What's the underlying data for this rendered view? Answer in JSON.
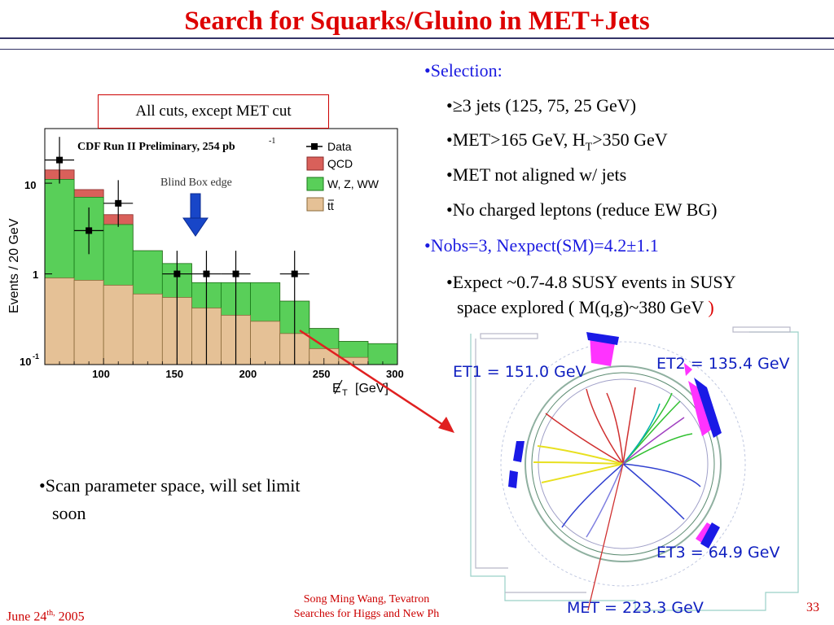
{
  "title": "Search for Squarks/Gluino in MET+Jets",
  "plot": {
    "cut_label": "All cuts, except MET cut",
    "header": "CDF Run II Preliminary, 254 pb",
    "header_sup": "-1",
    "ylabel": "Events / 20 GeV",
    "xlabel": "E",
    "xlabel_sub": "T",
    "xlabel_unit": "[GeV]",
    "blind_box_label": "Blind Box edge",
    "y_ticks": [
      "10",
      "1",
      "10"
    ],
    "y_tick_sup": "-1",
    "x_ticks": [
      "100",
      "150",
      "200",
      "250",
      "300"
    ],
    "legend": [
      "Data",
      "QCD",
      "W, Z, WW",
      "tt"
    ],
    "colors": {
      "qcd": "#d9605a",
      "wzww": "#59cf59",
      "tt": "#e5c196",
      "data": "#000000",
      "arrow": "#1846c8"
    }
  },
  "chart_data": {
    "type": "bar",
    "title": "CDF Run II Preliminary, 254 pb-1",
    "xlabel": "MET [GeV]",
    "ylabel": "Events / 20 GeV",
    "y_scale": "log",
    "xlim": [
      60,
      300
    ],
    "ylim": [
      0.1,
      40
    ],
    "bin_edges": [
      60,
      80,
      100,
      120,
      140,
      160,
      180,
      200,
      220,
      240,
      260,
      280,
      300
    ],
    "series": [
      {
        "name": "tt",
        "values": [
          0.9,
          0.85,
          0.75,
          0.6,
          0.55,
          0.42,
          0.35,
          0.3,
          0.22,
          0.15,
          0.12,
          0.1
        ]
      },
      {
        "name": "W, Z, WW",
        "values": [
          11,
          7,
          3.5,
          1.8,
          1.3,
          0.8,
          0.8,
          0.8,
          0.5,
          0.25,
          0.18,
          0.17
        ]
      },
      {
        "name": "QCD",
        "values": [
          14,
          8.5,
          4.5,
          1.8,
          1.3,
          0.8,
          0.8,
          0.8,
          0.5,
          0.25,
          0.18,
          0.17
        ]
      }
    ],
    "data_points": {
      "name": "Data",
      "x": [
        70,
        90,
        110,
        150,
        170,
        190,
        230
      ],
      "y": [
        18,
        3,
        6,
        1,
        1,
        1,
        1
      ]
    },
    "annotation": {
      "label": "Blind Box edge",
      "x": 165
    }
  },
  "bullets": {
    "selection": "•Selection:",
    "jets": "•≥3 jets (125, 75, 25 GeV)",
    "met_pre": "•MET>165 GeV, H",
    "met_sub": "T",
    "met_post": ">350 GeV",
    "notaligned": "•MET not aligned w/ jets",
    "noleptons": "•No charged leptons (reduce EW BG)",
    "nobs": "•Nobs=3,  Nexpect(SM)=4.2±1.1",
    "expect1": "•Expect ~0.7-4.8 SUSY events in SUSY",
    "expect2_pre": "space explored ( M(q,g)~380 GeV ",
    "expect2_paren": ")",
    "scan1": "•Scan parameter space, will set limit",
    "scan2": "soon"
  },
  "event": {
    "et1": "ET1 = 151.0 GeV",
    "et2": "ET2 = 135.4 GeV",
    "et3": "ET3 = 64.9 GeV",
    "met": "MET = 223.3 GeV"
  },
  "footer": {
    "date_pre": "June 24",
    "date_sup": "th,",
    "date_post": " 2005",
    "line1": "Song Ming Wang, Tevatron",
    "line2": "Searches for Higgs and New Ph",
    "page": "33"
  }
}
